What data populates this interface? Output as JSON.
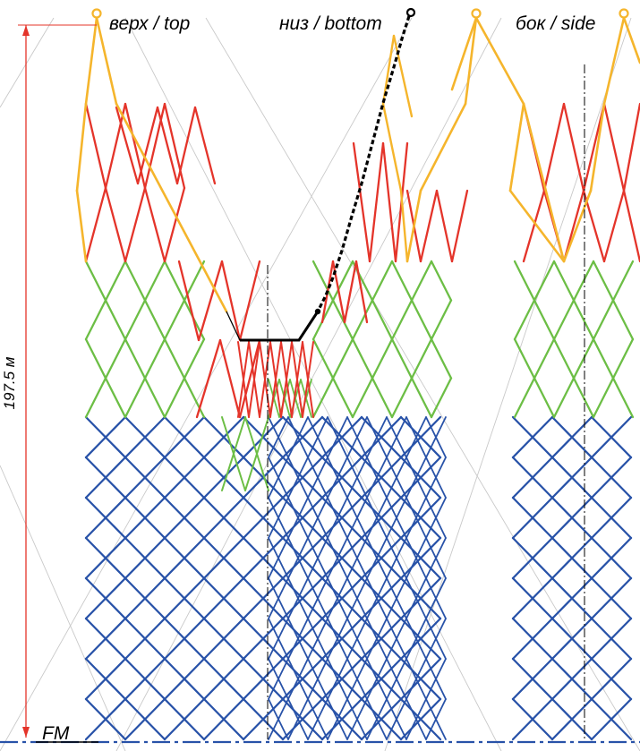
{
  "labels": {
    "top": "верх / top",
    "bottom": "низ / bottom",
    "side": "бок / side",
    "length": "197.5 м",
    "footrope": "FM"
  },
  "colors": {
    "yellow": "#F5B52C",
    "red": "#E4342A",
    "green": "#6CBE45",
    "blue": "#2852A8",
    "dimension": "#E4342A",
    "rope": "#000000"
  }
}
